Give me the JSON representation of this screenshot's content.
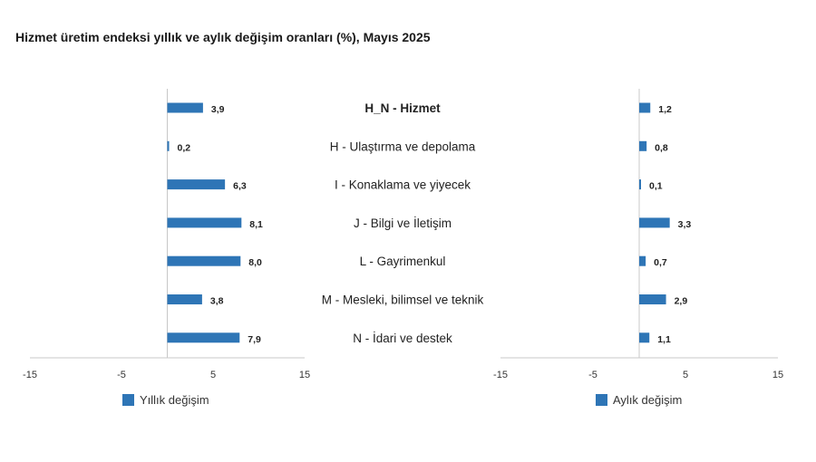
{
  "title": "Hizmet üretim endeksi yıllık ve aylık değişim oranları (%), Mayıs 2025",
  "colors": {
    "bar": "#2e75b6",
    "axis": "#c8c8c8"
  },
  "chart_data": [
    {
      "type": "bar",
      "orientation": "horizontal",
      "categories": [
        "H_N - Hizmet",
        "H - Ulaştırma ve depolama",
        "I - Konaklama ve yiyecek",
        "J - Bilgi ve İletişim",
        "L - Gayrimenkul",
        "M - Mesleki, bilimsel ve teknik",
        "N - İdari ve destek"
      ],
      "series": [
        {
          "name": "Yıllık değişim",
          "values": [
            3.9,
            0.2,
            6.3,
            8.1,
            8.0,
            3.8,
            7.9
          ]
        }
      ],
      "value_labels": [
        "3,9",
        "0,2",
        "6,3",
        "8,1",
        "8,0",
        "3,8",
        "7,9"
      ],
      "xlim": [
        -15,
        15
      ],
      "xticks": [
        -15,
        -5,
        5,
        15
      ],
      "legend": "bottom-left",
      "grid": false
    },
    {
      "type": "bar",
      "orientation": "horizontal",
      "categories": [
        "H_N - Hizmet",
        "H - Ulaştırma ve depolama",
        "I - Konaklama ve yiyecek",
        "J - Bilgi ve İletişim",
        "L - Gayrimenkul",
        "M - Mesleki, bilimsel ve teknik",
        "N - İdari ve destek"
      ],
      "series": [
        {
          "name": "Aylık değişim",
          "values": [
            1.2,
            0.8,
            0.1,
            3.3,
            0.7,
            2.9,
            1.1
          ]
        }
      ],
      "value_labels": [
        "1,2",
        "0,8",
        "0,1",
        "3,3",
        "0,7",
        "2,9",
        "1,1"
      ],
      "xlim": [
        -15,
        15
      ],
      "xticks": [
        -15,
        -5,
        5,
        15
      ],
      "legend": "bottom-left",
      "grid": false
    }
  ]
}
